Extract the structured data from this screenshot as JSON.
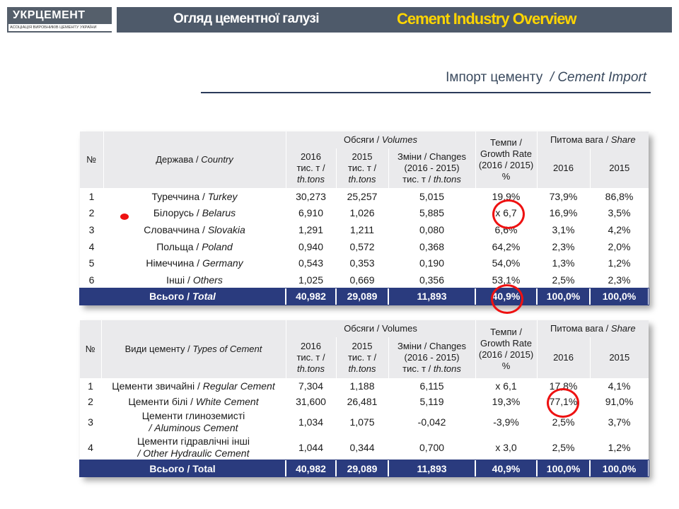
{
  "header": {
    "logo_text": "УКРЦЕМЕНТ",
    "logo_subtitle": "АСОЦІАЦІЯ ВИРОБНИКІВ ЦЕМЕНТУ УКРАЇНИ",
    "title_ua": "Огляд цементної галузі",
    "title_en": "Cement Industry Overview"
  },
  "section": {
    "title_ua": "Імпорт цементу",
    "title_en": "/ Cement Import"
  },
  "colors": {
    "header_bar": "#4e5a6a",
    "accent_yellow": "#ffd500",
    "total_row": "#2a3b7e",
    "highlight": "#e11111"
  },
  "import_table": {
    "head": {
      "no": "№",
      "country": "Держава / ",
      "country_en": "Country",
      "volumes": "Обсяги / ",
      "volumes_en": "Volumes",
      "growth": "Темпи / Growth Rate (2016 / 2015) %",
      "share": "Питома вага / ",
      "share_en": "Share",
      "y2016_a": "2016",
      "y2016_b": "тис. т /",
      "y2016_c": "th.tons",
      "y2015_a": "2015",
      "y2015_b": "тис. т /",
      "y2015_c": "th.tons",
      "chg_a": "Зміни / Changes",
      "chg_b": "(2016 - 2015)",
      "chg_c": "тис. т / ",
      "chg_c_en": "th.tons",
      "share2016": "2016",
      "share2015": "2015"
    },
    "rows": [
      {
        "n": "1",
        "ua": "Туреччина / ",
        "en": "Turkey",
        "v2016": "30,273",
        "v2015": "25,257",
        "chg": "5,015",
        "rate": "19,9%",
        "s2016": "73,9%",
        "s2015": "86,8%"
      },
      {
        "n": "2",
        "ua": "Білорусь / ",
        "en": "Belarus",
        "v2016": "6,910",
        "v2015": "1,026",
        "chg": "5,885",
        "rate": "x 6,7",
        "s2016": "16,9%",
        "s2015": "3,5%"
      },
      {
        "n": "3",
        "ua": "Словаччина / ",
        "en": "Slovakia",
        "v2016": "1,291",
        "v2015": "1,211",
        "chg": "0,080",
        "rate": "6,6%",
        "s2016": "3,1%",
        "s2015": "4,2%"
      },
      {
        "n": "4",
        "ua": "Польща / ",
        "en": "Poland",
        "v2016": "0,940",
        "v2015": "0,572",
        "chg": "0,368",
        "rate": "64,2%",
        "s2016": "2,3%",
        "s2015": "2,0%"
      },
      {
        "n": "5",
        "ua": "Німеччина / ",
        "en": "Germany",
        "v2016": "0,543",
        "v2015": "0,353",
        "chg": "0,190",
        "rate": "54,0%",
        "s2016": "1,3%",
        "s2015": "1,2%"
      },
      {
        "n": "6",
        "ua": "Інші / ",
        "en": "Others",
        "v2016": "1,025",
        "v2015": "0,669",
        "chg": "0,356",
        "rate": "53,1%",
        "s2016": "2,5%",
        "s2015": "2,3%"
      }
    ],
    "total": {
      "ua": "Всього / ",
      "en": "Total",
      "v2016": "40,982",
      "v2015": "29,089",
      "chg": "11,893",
      "rate": "40,9%",
      "s2016": "100,0%",
      "s2015": "100,0%"
    }
  },
  "types_table": {
    "head": {
      "no": "№",
      "type": "Види цементу / ",
      "type_en": "Types of Cement",
      "volumes": "Обсяги / Volumes",
      "growth": "Темпи / Growth Rate (2016 / 2015) %",
      "share": "Питома вага / ",
      "share_en": "Share",
      "y2016_a": "2016",
      "y2016_b": "тис. т /",
      "y2016_c": "th.tons",
      "y2015_a": "2015",
      "y2015_b": "тис. т /",
      "y2015_c": "th.tons",
      "chg_a": "Зміни / Changes",
      "chg_b": "(2016 - 2015)",
      "chg_c": "тис. т / ",
      "chg_c_en": "th.tons",
      "share2016": "2016",
      "share2015": "2015"
    },
    "rows": [
      {
        "n": "1",
        "ua": "Цементи звичайні / ",
        "en": "Regular Cement",
        "v2016": "7,304",
        "v2015": "1,188",
        "chg": "6,115",
        "rate": "x 6,1",
        "s2016": "17,8%",
        "s2015": "4,1%"
      },
      {
        "n": "2",
        "ua": "Цементи білі / ",
        "en": "White Cement",
        "v2016": "31,600",
        "v2015": "26,481",
        "chg": "5,119",
        "rate": "19,3%",
        "s2016": "77,1%",
        "s2015": "91,0%"
      },
      {
        "n": "3",
        "ua": "Цементи глиноземисті",
        "en": "/ Aluminous Cement",
        "v2016": "1,034",
        "v2015": "1,075",
        "chg": "-0,042",
        "rate": "-3,9%",
        "s2016": "2,5%",
        "s2015": "3,7%"
      },
      {
        "n": "4",
        "ua": "Цементи гідравлічні інші",
        "en": "/ Other Hydraulic Cement",
        "v2016": "1,044",
        "v2015": "0,344",
        "chg": "0,700",
        "rate": "x 3,0",
        "s2016": "2,5%",
        "s2015": "1,2%"
      }
    ],
    "total": {
      "label": "Всього / Total",
      "v2016": "40,982",
      "v2015": "29,089",
      "chg": "11,893",
      "rate": "40,9%",
      "s2016": "100,0%",
      "s2015": "100,0%"
    }
  }
}
